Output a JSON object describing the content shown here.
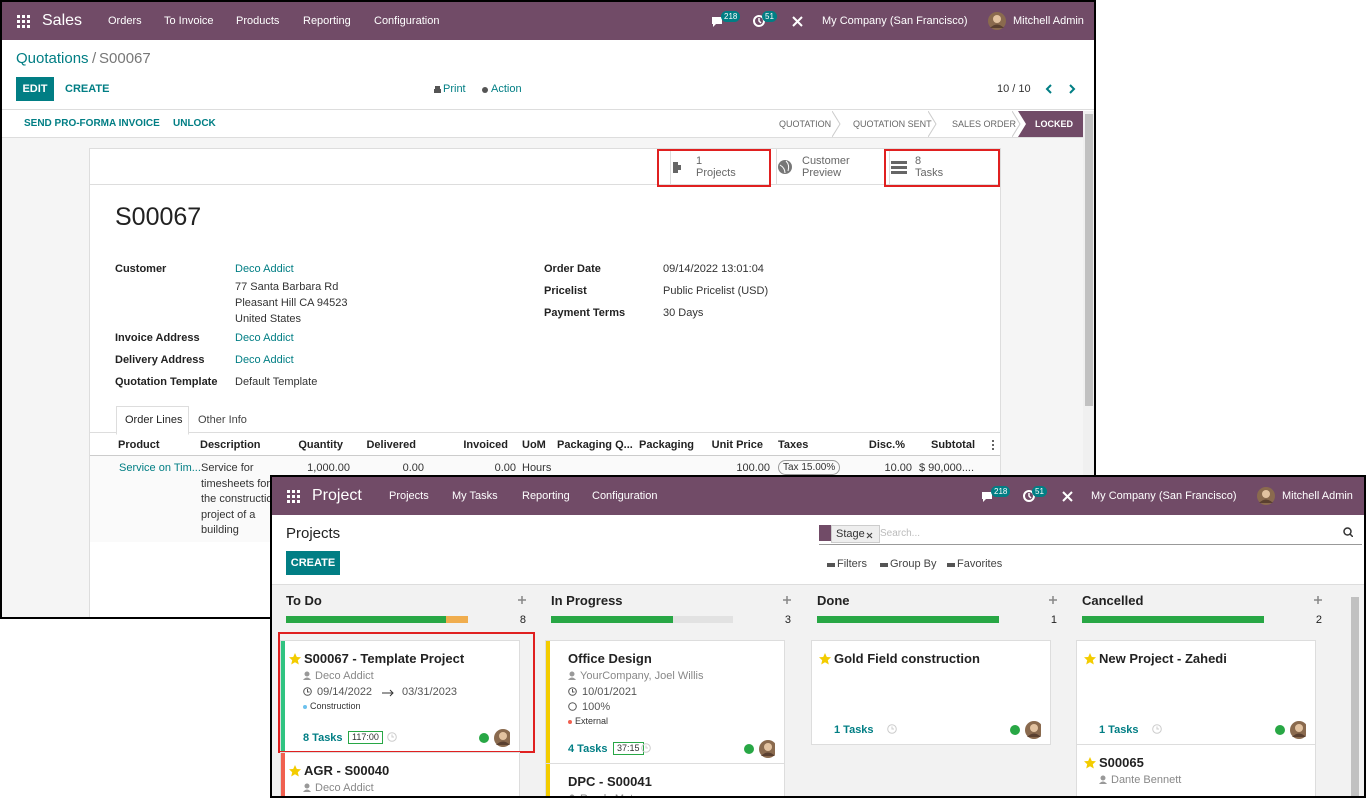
{
  "sales": {
    "app": "Sales",
    "menu": [
      "Orders",
      "To Invoice",
      "Products",
      "Reporting",
      "Configuration"
    ],
    "messages": "218",
    "activities": "51",
    "company": "My Company (San Francisco)",
    "user": "Mitchell Admin",
    "breadcrumb": {
      "parent": "Quotations",
      "separator": "/",
      "current": "S00067"
    },
    "buttons": {
      "edit": "EDIT",
      "create": "CREATE",
      "print": "Print",
      "action": "Action",
      "pager": "10 / 10",
      "send": "SEND PRO-FORMA INVOICE",
      "unlock": "UNLOCK"
    },
    "stages": [
      "QUOTATION",
      "QUOTATION SENT",
      "SALES ORDER",
      "LOCKED"
    ],
    "smart_buttons": [
      {
        "value": "1",
        "label": "Projects"
      },
      {
        "value": "Customer",
        "label": "Preview"
      },
      {
        "value": "8",
        "label": "Tasks"
      }
    ],
    "title": "S00067",
    "fields_left": [
      {
        "label": "Customer",
        "value": [
          "Deco Addict",
          "77 Santa Barbara Rd",
          "Pleasant Hill CA 94523",
          "United States"
        ]
      },
      {
        "label": "Invoice Address",
        "value": [
          "Deco Addict"
        ]
      },
      {
        "label": "Delivery Address",
        "value": [
          "Deco Addict"
        ]
      },
      {
        "label": "Quotation Template",
        "value": [
          "Default Template"
        ]
      }
    ],
    "fields_right": [
      {
        "label": "Order Date",
        "value": "09/14/2022 13:01:04"
      },
      {
        "label": "Pricelist",
        "value": "Public Pricelist (USD)"
      },
      {
        "label": "Payment Terms",
        "value": "30 Days"
      }
    ],
    "tabs": [
      "Order Lines",
      "Other Info"
    ],
    "columns": [
      "Product",
      "Description",
      "Quantity",
      "Delivered",
      "Invoiced",
      "UoM",
      "Packaging Q...",
      "Packaging",
      "Unit Price",
      "Taxes",
      "Disc.%",
      "Subtotal"
    ],
    "row": {
      "product": "Service on Tim...",
      "description": [
        "Service for",
        "timesheets for",
        "the construction",
        "project of a",
        "building"
      ],
      "quantity": "1,000.00",
      "delivered": "0.00",
      "invoiced": "0.00",
      "uom": "Hours",
      "unit_price": "100.00",
      "taxes": "Tax 15.00%",
      "discount": "10.00",
      "subtotal": "$ 90,000...."
    }
  },
  "project": {
    "app": "Project",
    "menu": [
      "Projects",
      "My Tasks",
      "Reporting",
      "Configuration"
    ],
    "messages": "218",
    "activities": "51",
    "company": "My Company (San Francisco)",
    "user": "Mitchell Admin",
    "title": "Projects",
    "facet": "Stage",
    "search_placeholder": "Search...",
    "create": "CREATE",
    "filters": [
      "Filters",
      "Group By",
      "Favorites"
    ],
    "columns": [
      {
        "name": "To Do",
        "count": "8",
        "cards": [
          {
            "name": "S00067 - Template Project",
            "customer": "Deco Addict",
            "date_start": "09/14/2022",
            "date_end": "03/31/2023",
            "tag": "Construction",
            "tasks": "8 Tasks",
            "time": "117:00"
          },
          {
            "name": "AGR - S00040",
            "customer": "Deco Addict"
          }
        ]
      },
      {
        "name": "In Progress",
        "count": "3",
        "cards": [
          {
            "name": "Office Design",
            "customer": "YourCompany, Joel Willis",
            "date_start": "10/01/2021",
            "progress": "100%",
            "tag": "External",
            "tasks": "4 Tasks",
            "time": "37:15"
          },
          {
            "name": "DPC - S00041",
            "customer": "Ready Mat"
          }
        ]
      },
      {
        "name": "Done",
        "count": "1",
        "cards": [
          {
            "name": "Gold Field construction",
            "tasks": "1 Tasks"
          }
        ]
      },
      {
        "name": "Cancelled",
        "count": "2",
        "cards": [
          {
            "name": "New Project - Zahedi",
            "tasks": "1 Tasks"
          },
          {
            "name": "S00065",
            "customer": "Dante Bennett"
          }
        ]
      }
    ]
  }
}
